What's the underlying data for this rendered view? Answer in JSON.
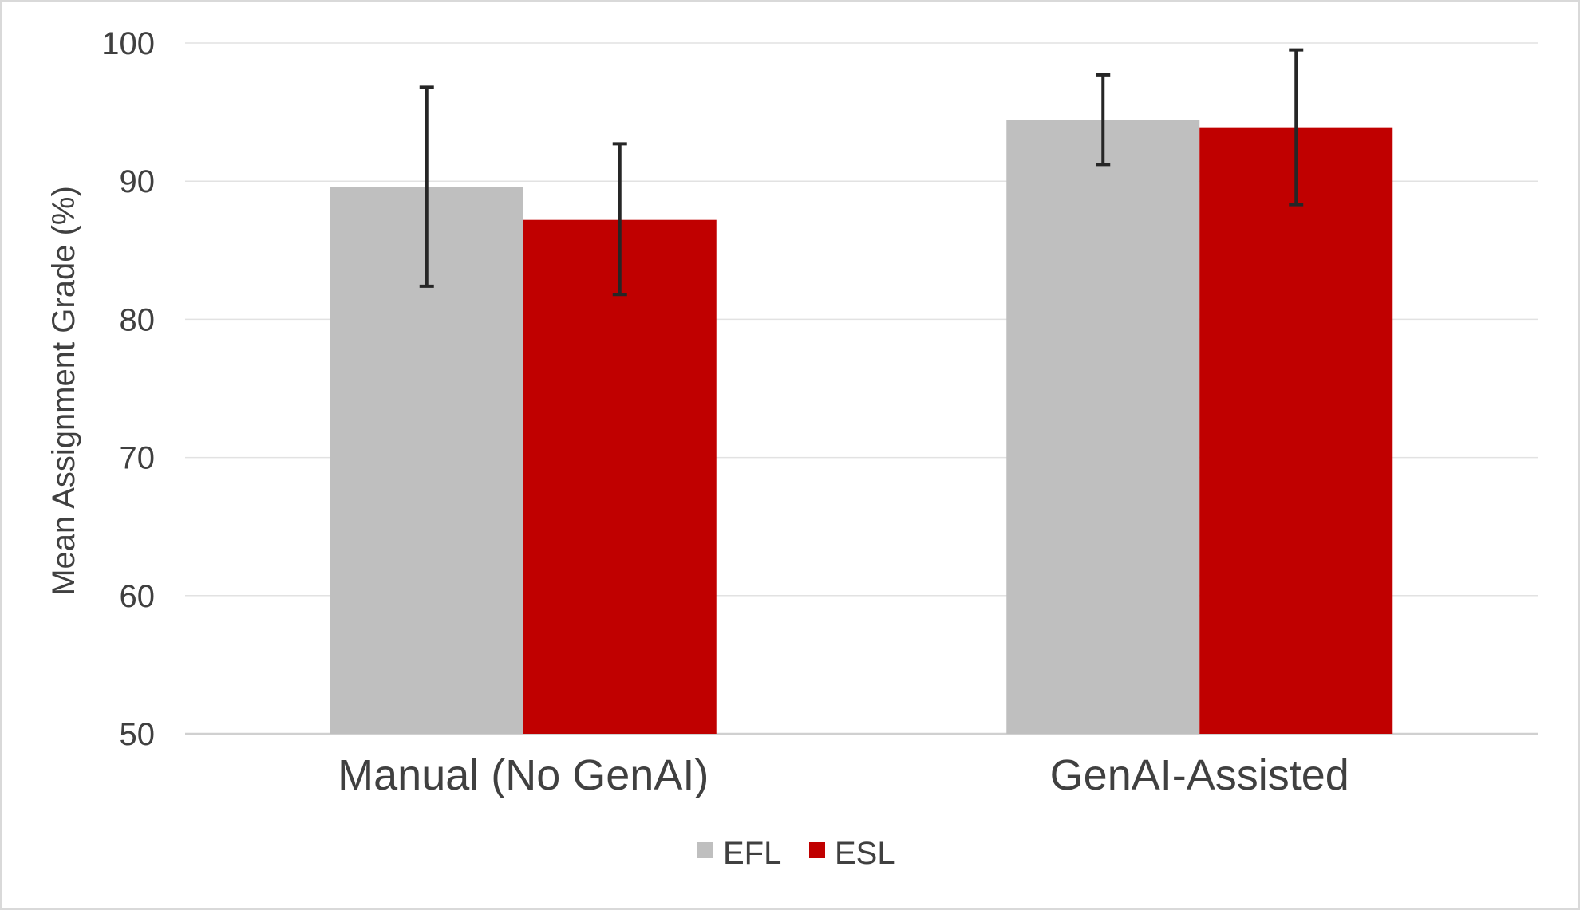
{
  "chart_data": {
    "type": "bar",
    "title": "",
    "xlabel": "",
    "ylabel": "Mean Assignment Grade (%)",
    "ylim": [
      50,
      100
    ],
    "yticks": [
      50,
      60,
      70,
      80,
      90,
      100
    ],
    "grid": true,
    "legend_position": "bottom",
    "categories": [
      "Manual (No GenAI)",
      "GenAI-Assisted"
    ],
    "series": [
      {
        "name": "EFL",
        "color": "#bfbfbf",
        "values": [
          89.6,
          94.4
        ],
        "error_low": [
          82.4,
          91.2
        ],
        "error_high": [
          96.8,
          97.7
        ]
      },
      {
        "name": "ESL",
        "color": "#c00000",
        "values": [
          87.2,
          93.9
        ],
        "error_low": [
          81.8,
          88.3
        ],
        "error_high": [
          92.7,
          99.5
        ]
      }
    ]
  }
}
